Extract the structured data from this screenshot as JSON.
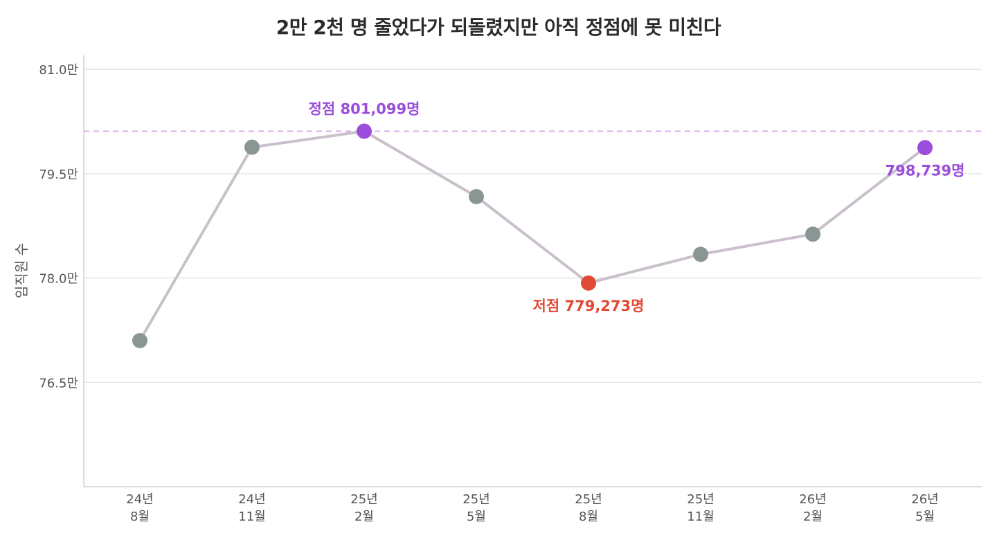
{
  "chart_data": {
    "type": "line",
    "title": "2만 2천 명 줄었다가 되돌렸지만 아직 정점에 못 미친다",
    "ylabel": "임직원 수",
    "xlabel": "",
    "categories": [
      [
        "24년",
        "8월"
      ],
      [
        "24년",
        "11월"
      ],
      [
        "25년",
        "2월"
      ],
      [
        "25년",
        "5월"
      ],
      [
        "25년",
        "8월"
      ],
      [
        "25년",
        "11월"
      ],
      [
        "26년",
        "2월"
      ],
      [
        "26년",
        "5월"
      ]
    ],
    "values": [
      771000,
      798800,
      801099,
      791700,
      779273,
      783400,
      786300,
      798739
    ],
    "ylim": [
      750000,
      812000
    ],
    "yticks": [
      765000,
      780000,
      795000,
      810000
    ],
    "ytick_labels": [
      "76.5만",
      "78.0만",
      "79.5만",
      "81.0만"
    ],
    "reference_line": {
      "value": 801099,
      "style": "dashed",
      "color": "#d7a9ea"
    },
    "annotations": [
      {
        "index": 2,
        "text": "정점 801,099명",
        "color": "#9b4ddb",
        "position": "above"
      },
      {
        "index": 4,
        "text": "저점 779,273명",
        "color": "#e04a33",
        "position": "below"
      },
      {
        "index": 7,
        "text": "798,739명",
        "color": "#9b4ddb",
        "position": "below"
      }
    ],
    "colors": {
      "line": "#c9c0cc",
      "default_marker": "#8a9693",
      "peak_marker": "#9b4ddb",
      "low_marker": "#e04a33",
      "latest_marker": "#9b4ddb",
      "grid": "#e6e6e6",
      "axis": "#cfcfcf"
    },
    "marker_highlight": {
      "2": "peak",
      "4": "low",
      "7": "latest"
    },
    "grid": true,
    "legend": "none"
  }
}
